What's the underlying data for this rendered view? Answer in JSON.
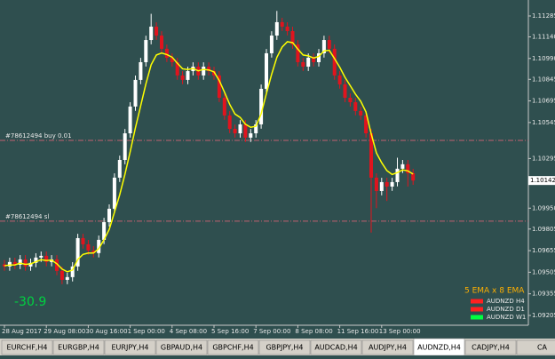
{
  "chart_data": {
    "type": "candlestick",
    "ylim": [
      1.09143,
      1.11396
    ],
    "yticks": [
      {
        "value": 1.11285,
        "label": "1.11285"
      },
      {
        "value": 1.1114,
        "label": "1.11140"
      },
      {
        "value": 1.1099,
        "label": "1.10990"
      },
      {
        "value": 1.10845,
        "label": "1.10845"
      },
      {
        "value": 1.10695,
        "label": "1.10695"
      },
      {
        "value": 1.10545,
        "label": "1.10545"
      },
      {
        "value": 1.10295,
        "label": "1.10295"
      },
      {
        "value": 1.0995,
        "label": "1.09950"
      },
      {
        "value": 1.09805,
        "label": "1.09805"
      },
      {
        "value": 1.09655,
        "label": "1.09655"
      },
      {
        "value": 1.09505,
        "label": "1.09505"
      },
      {
        "value": 1.09355,
        "label": "1.09355"
      },
      {
        "value": 1.09205,
        "label": "1.09205"
      }
    ],
    "categories": [
      "28 Aug 2017",
      null,
      null,
      null,
      null,
      null,
      null,
      null,
      "29 Aug 08:00",
      null,
      null,
      null,
      null,
      null,
      null,
      null,
      "30 Aug 16:00",
      null,
      null,
      null,
      null,
      null,
      null,
      null,
      "1 Sep 00:00",
      null,
      null,
      null,
      null,
      null,
      null,
      null,
      "4 Sep 08:00",
      null,
      null,
      null,
      null,
      null,
      null,
      null,
      "5 Sep 16:00",
      null,
      null,
      null,
      null,
      null,
      null,
      null,
      "7 Sep 00:00",
      null,
      null,
      null,
      null,
      null,
      null,
      null,
      "8 Sep 08:00",
      null,
      null,
      null,
      null,
      null,
      null,
      null,
      "11 Sep 16:00",
      null,
      null,
      null,
      null,
      null,
      null,
      null,
      "13 Sep 00:00",
      null,
      null,
      null,
      null,
      null,
      null
    ],
    "open": [
      1.0956,
      1.09545,
      1.09576,
      1.09557,
      1.09594,
      1.09545,
      1.0957,
      1.09607,
      1.09619,
      1.09576,
      1.09594,
      1.09514,
      1.09452,
      1.09471,
      1.09545,
      1.09742,
      1.09699,
      1.09656,
      1.09638,
      1.0973,
      1.09853,
      1.09946,
      1.10162,
      1.10285,
      1.1047,
      1.10656,
      1.10841,
      1.10964,
      1.11118,
      1.11211,
      1.11149,
      1.11057,
      1.10995,
      1.10964,
      1.10872,
      1.10841,
      1.10902,
      1.10933,
      1.10872,
      1.10933,
      1.10902,
      1.10872,
      1.10717,
      1.10594,
      1.10501,
      1.1047,
      1.10532,
      1.1044,
      1.1047,
      1.10532,
      1.10779,
      1.11026,
      1.11149,
      1.11242,
      1.11211,
      1.1118,
      1.11087,
      1.10964,
      1.10933,
      1.10995,
      1.10964,
      1.11026,
      1.11118,
      1.11057,
      1.10872,
      1.1081,
      1.10717,
      1.10686,
      1.10625,
      1.10594,
      1.1047,
      1.10162,
      1.10069,
      1.10131,
      1.101,
      1.10131,
      1.10224,
      1.10255,
      1.10193
    ],
    "high": [
      1.0959,
      1.09606,
      1.09606,
      1.09624,
      1.09624,
      1.096,
      1.09637,
      1.09649,
      1.09649,
      1.09624,
      1.09624,
      1.09544,
      1.09501,
      1.09575,
      1.09772,
      1.09772,
      1.09729,
      1.09686,
      1.0976,
      1.09883,
      1.09976,
      1.10192,
      1.10315,
      1.105,
      1.10686,
      1.10871,
      1.10994,
      1.11148,
      1.113,
      1.11241,
      1.11179,
      1.11087,
      1.11025,
      1.10994,
      1.10902,
      1.10932,
      1.10963,
      1.10963,
      1.10963,
      1.10963,
      1.10932,
      1.10902,
      1.10747,
      1.10624,
      1.10531,
      1.10562,
      1.10562,
      1.105,
      1.10562,
      1.10809,
      1.11056,
      1.11179,
      1.1132,
      1.11272,
      1.11241,
      1.1121,
      1.11117,
      1.10994,
      1.11025,
      1.11025,
      1.11056,
      1.11148,
      1.11148,
      1.11087,
      1.10902,
      1.1084,
      1.10747,
      1.10716,
      1.10655,
      1.10624,
      1.105,
      1.10192,
      1.10161,
      1.10161,
      1.10161,
      1.103,
      1.10285,
      1.10285,
      1.10223
    ],
    "low": [
      1.09515,
      1.09515,
      1.09527,
      1.09527,
      1.09515,
      1.09515,
      1.0954,
      1.09577,
      1.09546,
      1.09546,
      1.09484,
      1.09422,
      1.09422,
      1.09441,
      1.09515,
      1.09669,
      1.09626,
      1.09608,
      1.09608,
      1.097,
      1.09823,
      1.09916,
      1.10132,
      1.10255,
      1.1044,
      1.10626,
      1.10811,
      1.10934,
      1.11088,
      1.11119,
      1.11027,
      1.10965,
      1.10934,
      1.10842,
      1.10811,
      1.10811,
      1.10872,
      1.10842,
      1.10842,
      1.10872,
      1.10842,
      1.10687,
      1.10564,
      1.10471,
      1.1044,
      1.1044,
      1.1041,
      1.1041,
      1.1044,
      1.10502,
      1.10749,
      1.10996,
      1.11119,
      1.11181,
      1.1115,
      1.11057,
      1.10934,
      1.10903,
      1.10903,
      1.10934,
      1.10934,
      1.10996,
      1.11027,
      1.10842,
      1.1078,
      1.10687,
      1.10656,
      1.10595,
      1.10564,
      1.1044,
      1.0978,
      1.0995,
      1.10039,
      1.1,
      1.1007,
      1.10101,
      1.10194,
      1.101,
      1.10112
    ],
    "close": [
      1.09545,
      1.09576,
      1.09557,
      1.09594,
      1.09545,
      1.0957,
      1.09607,
      1.09619,
      1.09576,
      1.09594,
      1.09514,
      1.09452,
      1.09471,
      1.09545,
      1.09742,
      1.09699,
      1.09656,
      1.09638,
      1.0973,
      1.09853,
      1.09946,
      1.10162,
      1.10285,
      1.1047,
      1.10656,
      1.10841,
      1.10964,
      1.11118,
      1.11211,
      1.11149,
      1.11057,
      1.10995,
      1.10964,
      1.10872,
      1.10841,
      1.10902,
      1.10933,
      1.10872,
      1.10933,
      1.10902,
      1.10872,
      1.10717,
      1.10594,
      1.10501,
      1.1047,
      1.10532,
      1.1044,
      1.1047,
      1.10532,
      1.10779,
      1.11026,
      1.11149,
      1.11242,
      1.11211,
      1.1118,
      1.11087,
      1.10964,
      1.10933,
      1.10995,
      1.10964,
      1.11026,
      1.11118,
      1.11057,
      1.10872,
      1.1081,
      1.10717,
      1.10686,
      1.10625,
      1.10594,
      1.1047,
      1.10162,
      1.10069,
      1.10131,
      1.101,
      1.10131,
      1.10224,
      1.10255,
      1.10193,
      1.10142
    ],
    "ema": {
      "color": "#ffff00",
      "values": [
        1.0955,
        1.09555,
        1.09556,
        1.09568,
        1.0956,
        1.09563,
        1.09578,
        1.09592,
        1.09587,
        1.09589,
        1.09564,
        1.09527,
        1.09508,
        1.0952,
        1.09594,
        1.09629,
        1.09638,
        1.09638,
        1.09669,
        1.0973,
        1.09802,
        1.09922,
        1.10043,
        1.10185,
        1.10342,
        1.10508,
        1.1066,
        1.10813,
        1.10946,
        1.11014,
        1.11028,
        1.11017,
        1.10999,
        1.10957,
        1.10918,
        1.10913,
        1.1092,
        1.10904,
        1.10914,
        1.1091,
        1.10897,
        1.10837,
        1.10756,
        1.10671,
        1.10604,
        1.1058,
        1.10533,
        1.10512,
        1.10519,
        1.10605,
        1.10746,
        1.1088,
        1.10998,
        1.11069,
        1.11106,
        1.111,
        1.11055,
        1.11014,
        1.11008,
        1.10993,
        1.11004,
        1.11042,
        1.11047,
        1.10989,
        1.10929,
        1.10859,
        1.10801,
        1.10742,
        1.10693,
        1.10619,
        1.10467,
        1.10334,
        1.10266,
        1.10211,
        1.10184,
        1.10197,
        1.10216,
        1.10209,
        1.10187
      ]
    },
    "bull_color": "#ffffff",
    "bear_color": "#e0141e",
    "orders": [
      {
        "label": "#78612494 buy 0.01",
        "price": 1.10421
      },
      {
        "label": "#78612494 sl",
        "price": 1.0986
      }
    ],
    "last_price": 1.10142,
    "profit": -30.9,
    "legend_title": "5 EMA x 8 EMA",
    "legend": [
      {
        "name": "AUDNZD H4",
        "color": "#ff2020"
      },
      {
        "name": "AUDNZD D1",
        "color": "#ff2020"
      },
      {
        "name": "AUDNZD W1",
        "color": "#00ff40"
      }
    ],
    "tabs": [
      "EURCHF,H4",
      "EURGBP,H4",
      "EURJPY,H4",
      "GBPAUD,H4",
      "GBPCHF,H4",
      "GBPJPY,H4",
      "AUDCAD,H4",
      "AUDJPY,H4",
      "AUDNZD,H4",
      "CADJPY,H4",
      "CA"
    ],
    "active_tab": 8
  }
}
